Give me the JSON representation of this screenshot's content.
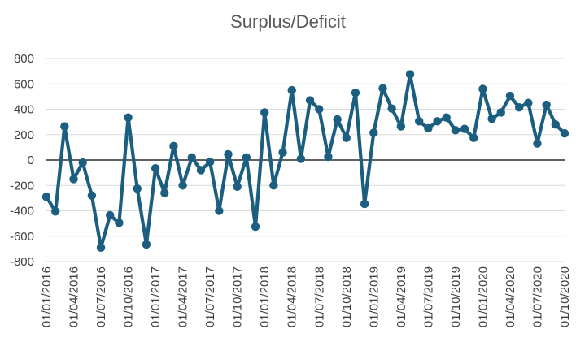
{
  "chart_data": {
    "type": "line",
    "title": "Surplus/Deficit",
    "xlabel": "",
    "ylabel": "",
    "ylim": [
      -800,
      800
    ],
    "yticks": [
      -800,
      -600,
      -400,
      -200,
      0,
      200,
      400,
      600,
      800
    ],
    "ytick_labels": [
      "-800",
      "-600",
      "-400",
      "-200",
      "0",
      "200",
      "400",
      "600",
      "800"
    ],
    "xtick_labels": [
      "01/01/2016",
      "01/04/2016",
      "01/07/2016",
      "01/10/2016",
      "01/01/2017",
      "01/04/2017",
      "01/07/2017",
      "01/10/2017",
      "01/01/2018",
      "01/04/2018",
      "01/07/2018",
      "01/10/2018",
      "01/01/2019",
      "01/04/2019",
      "01/07/2019",
      "01/10/2019",
      "01/01/2020",
      "01/04/2020",
      "01/07/2020",
      "01/10/2020"
    ],
    "grid": "horizontal",
    "legend": "none",
    "colors": {
      "line": "#1b5e80",
      "grid": "#d9d9d9",
      "zero_axis": "#000000"
    },
    "x": [
      "2016-01",
      "2016-02",
      "2016-03",
      "2016-04",
      "2016-05",
      "2016-06",
      "2016-07",
      "2016-08",
      "2016-09",
      "2016-10",
      "2016-11",
      "2016-12",
      "2017-01",
      "2017-02",
      "2017-03",
      "2017-04",
      "2017-05",
      "2017-06",
      "2017-07",
      "2017-08",
      "2017-09",
      "2017-10",
      "2017-11",
      "2017-12",
      "2018-01",
      "2018-02",
      "2018-03",
      "2018-04",
      "2018-05",
      "2018-06",
      "2018-07",
      "2018-08",
      "2018-09",
      "2018-10",
      "2018-11",
      "2018-12",
      "2019-01",
      "2019-02",
      "2019-03",
      "2019-04",
      "2019-05",
      "2019-06",
      "2019-07",
      "2019-08",
      "2019-09",
      "2019-10",
      "2019-11",
      "2019-12",
      "2020-01",
      "2020-02",
      "2020-03",
      "2020-04",
      "2020-05",
      "2020-06",
      "2020-07",
      "2020-08",
      "2020-09",
      "2020-10"
    ],
    "series": [
      {
        "values": [
          -290,
          -405,
          265,
          -150,
          -20,
          -280,
          -690,
          -435,
          -495,
          335,
          -225,
          -665,
          -65,
          -260,
          110,
          -200,
          20,
          -80,
          -15,
          -400,
          45,
          -210,
          20,
          -525,
          375,
          -200,
          60,
          550,
          10,
          470,
          400,
          25,
          320,
          175,
          530,
          -345,
          215,
          565,
          405,
          265,
          675,
          305,
          250,
          305,
          335,
          235,
          245,
          175,
          560,
          325,
          375,
          505,
          415,
          450,
          130,
          435,
          280,
          210
        ]
      }
    ]
  }
}
